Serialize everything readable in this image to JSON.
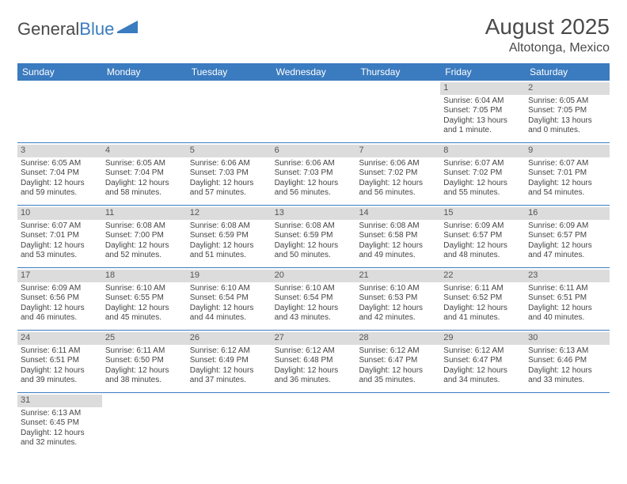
{
  "brand": {
    "part1": "General",
    "part2": "Blue"
  },
  "title": "August 2025",
  "location": "Altotonga, Mexico",
  "colors": {
    "header_bg": "#3b7bbf",
    "header_text": "#ffffff",
    "daynum_bg": "#dcdcdc",
    "week_border": "#3b7bbf",
    "text": "#444444"
  },
  "day_headers": [
    "Sunday",
    "Monday",
    "Tuesday",
    "Wednesday",
    "Thursday",
    "Friday",
    "Saturday"
  ],
  "weeks": [
    [
      null,
      null,
      null,
      null,
      null,
      {
        "n": "1",
        "sr": "Sunrise: 6:04 AM",
        "ss": "Sunset: 7:05 PM",
        "d1": "Daylight: 13 hours",
        "d2": "and 1 minute."
      },
      {
        "n": "2",
        "sr": "Sunrise: 6:05 AM",
        "ss": "Sunset: 7:05 PM",
        "d1": "Daylight: 13 hours",
        "d2": "and 0 minutes."
      }
    ],
    [
      {
        "n": "3",
        "sr": "Sunrise: 6:05 AM",
        "ss": "Sunset: 7:04 PM",
        "d1": "Daylight: 12 hours",
        "d2": "and 59 minutes."
      },
      {
        "n": "4",
        "sr": "Sunrise: 6:05 AM",
        "ss": "Sunset: 7:04 PM",
        "d1": "Daylight: 12 hours",
        "d2": "and 58 minutes."
      },
      {
        "n": "5",
        "sr": "Sunrise: 6:06 AM",
        "ss": "Sunset: 7:03 PM",
        "d1": "Daylight: 12 hours",
        "d2": "and 57 minutes."
      },
      {
        "n": "6",
        "sr": "Sunrise: 6:06 AM",
        "ss": "Sunset: 7:03 PM",
        "d1": "Daylight: 12 hours",
        "d2": "and 56 minutes."
      },
      {
        "n": "7",
        "sr": "Sunrise: 6:06 AM",
        "ss": "Sunset: 7:02 PM",
        "d1": "Daylight: 12 hours",
        "d2": "and 56 minutes."
      },
      {
        "n": "8",
        "sr": "Sunrise: 6:07 AM",
        "ss": "Sunset: 7:02 PM",
        "d1": "Daylight: 12 hours",
        "d2": "and 55 minutes."
      },
      {
        "n": "9",
        "sr": "Sunrise: 6:07 AM",
        "ss": "Sunset: 7:01 PM",
        "d1": "Daylight: 12 hours",
        "d2": "and 54 minutes."
      }
    ],
    [
      {
        "n": "10",
        "sr": "Sunrise: 6:07 AM",
        "ss": "Sunset: 7:01 PM",
        "d1": "Daylight: 12 hours",
        "d2": "and 53 minutes."
      },
      {
        "n": "11",
        "sr": "Sunrise: 6:08 AM",
        "ss": "Sunset: 7:00 PM",
        "d1": "Daylight: 12 hours",
        "d2": "and 52 minutes."
      },
      {
        "n": "12",
        "sr": "Sunrise: 6:08 AM",
        "ss": "Sunset: 6:59 PM",
        "d1": "Daylight: 12 hours",
        "d2": "and 51 minutes."
      },
      {
        "n": "13",
        "sr": "Sunrise: 6:08 AM",
        "ss": "Sunset: 6:59 PM",
        "d1": "Daylight: 12 hours",
        "d2": "and 50 minutes."
      },
      {
        "n": "14",
        "sr": "Sunrise: 6:08 AM",
        "ss": "Sunset: 6:58 PM",
        "d1": "Daylight: 12 hours",
        "d2": "and 49 minutes."
      },
      {
        "n": "15",
        "sr": "Sunrise: 6:09 AM",
        "ss": "Sunset: 6:57 PM",
        "d1": "Daylight: 12 hours",
        "d2": "and 48 minutes."
      },
      {
        "n": "16",
        "sr": "Sunrise: 6:09 AM",
        "ss": "Sunset: 6:57 PM",
        "d1": "Daylight: 12 hours",
        "d2": "and 47 minutes."
      }
    ],
    [
      {
        "n": "17",
        "sr": "Sunrise: 6:09 AM",
        "ss": "Sunset: 6:56 PM",
        "d1": "Daylight: 12 hours",
        "d2": "and 46 minutes."
      },
      {
        "n": "18",
        "sr": "Sunrise: 6:10 AM",
        "ss": "Sunset: 6:55 PM",
        "d1": "Daylight: 12 hours",
        "d2": "and 45 minutes."
      },
      {
        "n": "19",
        "sr": "Sunrise: 6:10 AM",
        "ss": "Sunset: 6:54 PM",
        "d1": "Daylight: 12 hours",
        "d2": "and 44 minutes."
      },
      {
        "n": "20",
        "sr": "Sunrise: 6:10 AM",
        "ss": "Sunset: 6:54 PM",
        "d1": "Daylight: 12 hours",
        "d2": "and 43 minutes."
      },
      {
        "n": "21",
        "sr": "Sunrise: 6:10 AM",
        "ss": "Sunset: 6:53 PM",
        "d1": "Daylight: 12 hours",
        "d2": "and 42 minutes."
      },
      {
        "n": "22",
        "sr": "Sunrise: 6:11 AM",
        "ss": "Sunset: 6:52 PM",
        "d1": "Daylight: 12 hours",
        "d2": "and 41 minutes."
      },
      {
        "n": "23",
        "sr": "Sunrise: 6:11 AM",
        "ss": "Sunset: 6:51 PM",
        "d1": "Daylight: 12 hours",
        "d2": "and 40 minutes."
      }
    ],
    [
      {
        "n": "24",
        "sr": "Sunrise: 6:11 AM",
        "ss": "Sunset: 6:51 PM",
        "d1": "Daylight: 12 hours",
        "d2": "and 39 minutes."
      },
      {
        "n": "25",
        "sr": "Sunrise: 6:11 AM",
        "ss": "Sunset: 6:50 PM",
        "d1": "Daylight: 12 hours",
        "d2": "and 38 minutes."
      },
      {
        "n": "26",
        "sr": "Sunrise: 6:12 AM",
        "ss": "Sunset: 6:49 PM",
        "d1": "Daylight: 12 hours",
        "d2": "and 37 minutes."
      },
      {
        "n": "27",
        "sr": "Sunrise: 6:12 AM",
        "ss": "Sunset: 6:48 PM",
        "d1": "Daylight: 12 hours",
        "d2": "and 36 minutes."
      },
      {
        "n": "28",
        "sr": "Sunrise: 6:12 AM",
        "ss": "Sunset: 6:47 PM",
        "d1": "Daylight: 12 hours",
        "d2": "and 35 minutes."
      },
      {
        "n": "29",
        "sr": "Sunrise: 6:12 AM",
        "ss": "Sunset: 6:47 PM",
        "d1": "Daylight: 12 hours",
        "d2": "and 34 minutes."
      },
      {
        "n": "30",
        "sr": "Sunrise: 6:13 AM",
        "ss": "Sunset: 6:46 PM",
        "d1": "Daylight: 12 hours",
        "d2": "and 33 minutes."
      }
    ],
    [
      {
        "n": "31",
        "sr": "Sunrise: 6:13 AM",
        "ss": "Sunset: 6:45 PM",
        "d1": "Daylight: 12 hours",
        "d2": "and 32 minutes."
      },
      null,
      null,
      null,
      null,
      null,
      null
    ]
  ]
}
